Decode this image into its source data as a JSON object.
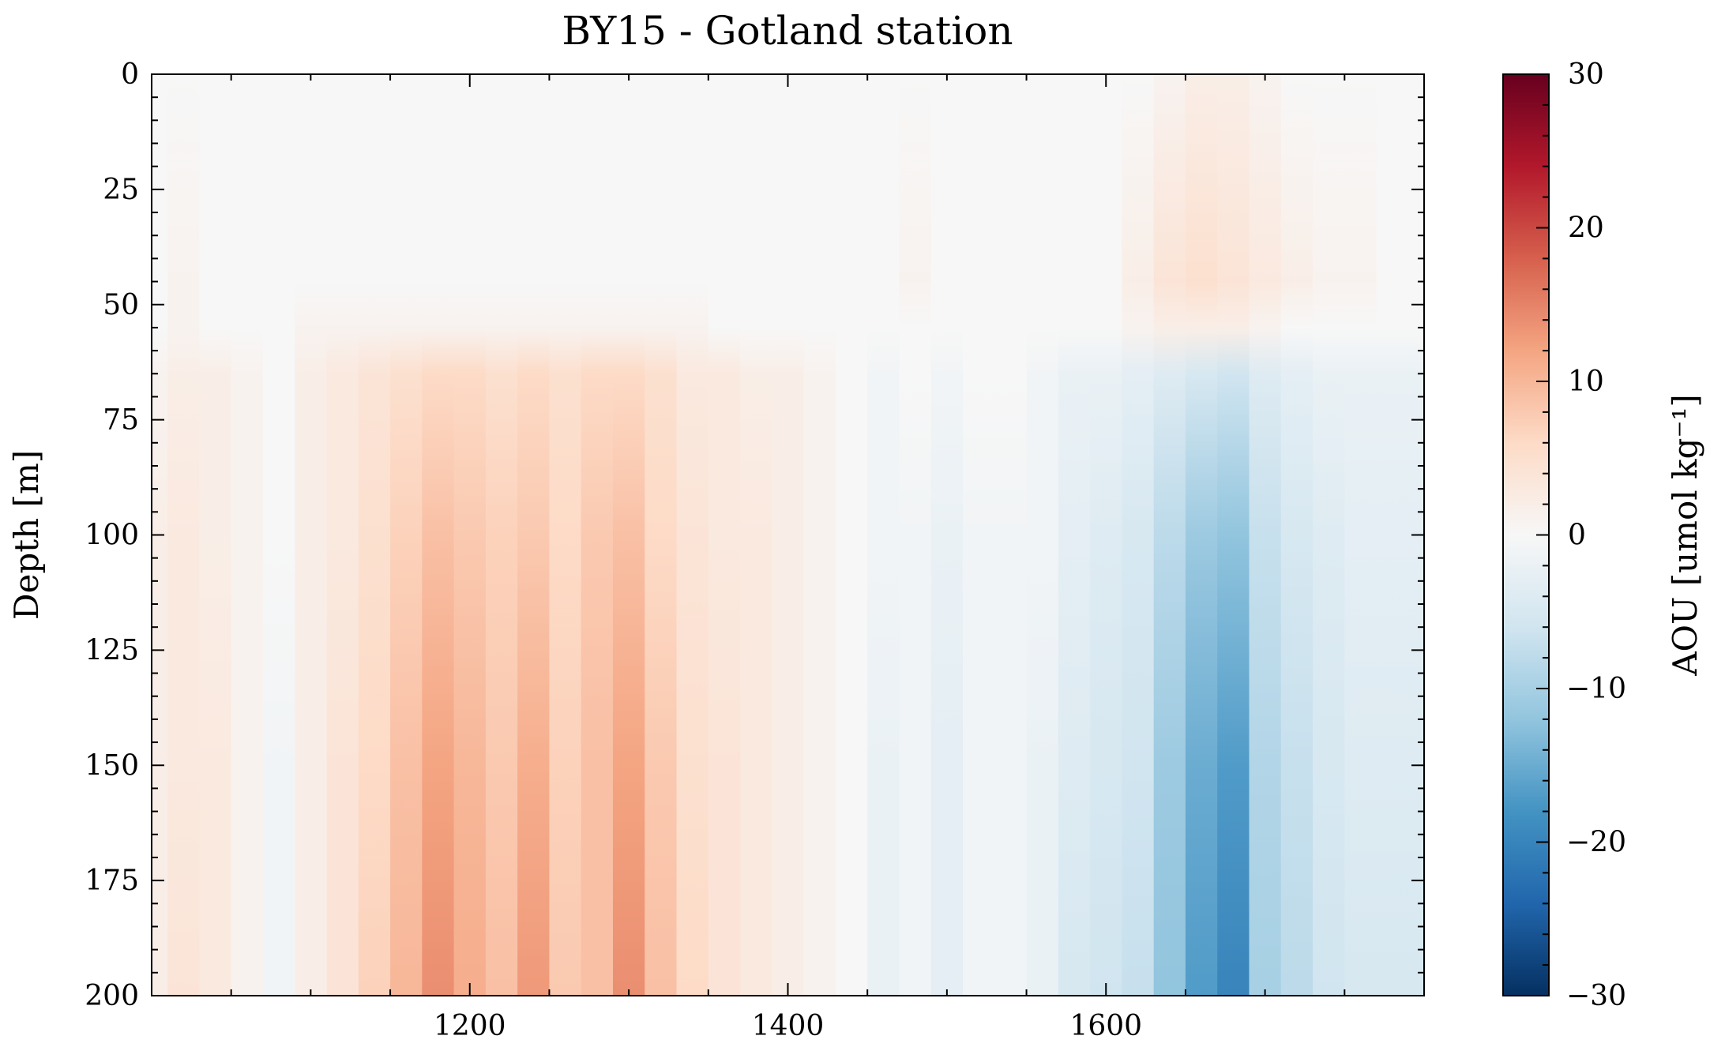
{
  "chart_data": {
    "type": "heatmap",
    "title": "BY15 - Gotland station",
    "xlabel": "",
    "ylabel": "Depth [m]",
    "colorbar_label": "AOU [umol kg⁻¹]",
    "colormap": "RdBu_r",
    "colormap_colors": [
      "#053061",
      "#2166ac",
      "#4393c3",
      "#92c5de",
      "#d1e5f0",
      "#f7f7f7",
      "#fddbc7",
      "#f4a582",
      "#d6604d",
      "#b2182b",
      "#67001f"
    ],
    "clim": [
      -30,
      30
    ],
    "xlim": [
      1000,
      1800
    ],
    "ylim": [
      200,
      0
    ],
    "y_inverted": true,
    "x_ticks": [
      1200,
      1400,
      1600
    ],
    "x_tick_labels": [
      "1200",
      "1400",
      "1600"
    ],
    "y_ticks": [
      0,
      25,
      50,
      75,
      100,
      125,
      150,
      175,
      200
    ],
    "y_tick_labels": [
      "0",
      "25",
      "50",
      "75",
      "100",
      "125",
      "150",
      "175",
      "200"
    ],
    "colorbar_ticks": [
      30,
      20,
      10,
      0,
      -10,
      -20,
      -30
    ],
    "colorbar_tick_labels": [
      "30",
      "20",
      "10",
      "0",
      "−10",
      "−20",
      "−30"
    ],
    "grid": false,
    "x": [
      1000,
      1020,
      1040,
      1060,
      1080,
      1100,
      1120,
      1140,
      1160,
      1180,
      1200,
      1220,
      1240,
      1260,
      1280,
      1300,
      1320,
      1340,
      1360,
      1380,
      1400,
      1420,
      1440,
      1460,
      1480,
      1500,
      1520,
      1540,
      1560,
      1580,
      1600,
      1620,
      1640,
      1660,
      1680,
      1700,
      1720,
      1740,
      1760,
      1780,
      1800
    ],
    "depths": [
      0,
      45,
      55,
      65,
      100,
      150,
      200
    ],
    "values": [
      [
        0,
        0,
        0,
        0,
        0,
        0,
        0,
        0,
        0,
        0,
        0,
        0,
        0,
        0,
        0,
        0,
        0,
        0,
        0,
        0,
        0,
        0,
        0,
        0,
        0,
        0,
        0,
        0,
        0,
        0,
        0,
        0,
        1,
        2,
        2,
        1,
        0,
        0,
        0,
        0,
        0
      ],
      [
        0,
        1,
        0,
        0,
        0,
        0,
        0,
        0,
        0,
        0,
        0,
        0,
        0,
        0,
        0,
        0,
        0,
        0,
        0,
        0,
        0,
        0,
        0,
        0,
        1,
        0,
        0,
        0,
        0,
        0,
        0,
        2,
        4,
        5,
        4,
        3,
        2,
        1,
        1,
        0,
        0
      ],
      [
        0,
        1,
        0,
        0,
        0,
        1,
        1,
        1,
        1,
        1,
        1,
        1,
        1,
        1,
        1,
        1,
        1,
        1,
        0,
        0,
        0,
        0,
        0,
        0,
        0,
        0,
        0,
        0,
        0,
        0,
        0,
        1,
        2,
        2,
        2,
        1,
        0,
        0,
        0,
        0,
        0
      ],
      [
        1,
        2,
        2,
        1,
        0,
        2,
        3,
        4,
        5,
        6,
        6,
        5,
        6,
        5,
        6,
        6,
        5,
        3,
        3,
        2,
        2,
        1,
        0,
        -1,
        0,
        -1,
        0,
        0,
        -1,
        -2,
        -2,
        -3,
        -4,
        -5,
        -6,
        -4,
        -3,
        -2,
        -2,
        -2,
        -2
      ],
      [
        2,
        3,
        2,
        1,
        0,
        2,
        3,
        5,
        7,
        9,
        8,
        7,
        8,
        6,
        8,
        9,
        6,
        4,
        3,
        3,
        2,
        1,
        0,
        -1,
        -1,
        -2,
        -1,
        -1,
        -1,
        -3,
        -4,
        -5,
        -8,
        -11,
        -12,
        -7,
        -5,
        -4,
        -3,
        -3,
        -3
      ],
      [
        2,
        3,
        3,
        1,
        -1,
        2,
        4,
        6,
        9,
        12,
        10,
        8,
        11,
        7,
        9,
        12,
        8,
        5,
        4,
        3,
        2,
        1,
        0,
        -2,
        -1,
        -3,
        -1,
        -1,
        -2,
        -4,
        -5,
        -6,
        -11,
        -15,
        -17,
        -9,
        -7,
        -5,
        -4,
        -4,
        -4
      ],
      [
        2,
        4,
        3,
        1,
        -1,
        2,
        4,
        7,
        10,
        14,
        11,
        9,
        13,
        8,
        9,
        14,
        9,
        6,
        4,
        3,
        2,
        1,
        0,
        -2,
        -1,
        -3,
        -1,
        -1,
        -2,
        -5,
        -6,
        -7,
        -12,
        -17,
        -20,
        -10,
        -8,
        -6,
        -5,
        -5,
        -5
      ]
    ]
  }
}
